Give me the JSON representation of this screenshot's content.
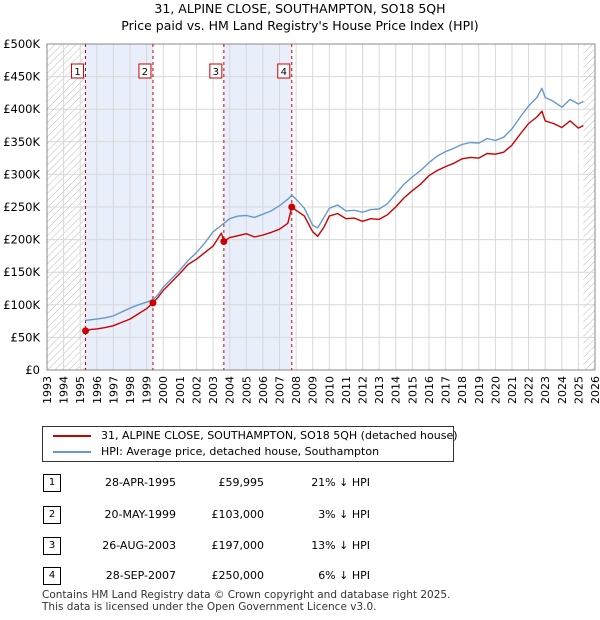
{
  "title": {
    "line1": "31, ALPINE CLOSE, SOUTHAMPTON, SO18 5QH",
    "line2": "Price paid vs. HM Land Registry's House Price Index (HPI)"
  },
  "colors": {
    "property_line": "#cc0000",
    "hpi_line": "#6699cc",
    "shade": "#e8eefa",
    "grid": "#d8d8d8",
    "marker_border": "#cc0000"
  },
  "chart_data": {
    "type": "line",
    "title": "31, ALPINE CLOSE, SOUTHAMPTON, SO18 5QH — Price paid vs. HM Land Registry's House Price Index (HPI)",
    "xlabel": "",
    "ylabel": "",
    "xlim": [
      1993,
      2026
    ],
    "ylim": [
      0,
      500000
    ],
    "grid": true,
    "y_ticks": [
      0,
      50000,
      100000,
      150000,
      200000,
      250000,
      300000,
      350000,
      400000,
      450000,
      500000
    ],
    "y_tick_labels": [
      "£0",
      "£50K",
      "£100K",
      "£150K",
      "£200K",
      "£250K",
      "£300K",
      "£350K",
      "£400K",
      "£450K",
      "£500K"
    ],
    "x_ticks": [
      1993,
      1994,
      1995,
      1996,
      1997,
      1998,
      1999,
      2000,
      2001,
      2002,
      2003,
      2004,
      2005,
      2006,
      2007,
      2008,
      2009,
      2010,
      2011,
      2012,
      2013,
      2014,
      2015,
      2016,
      2017,
      2018,
      2019,
      2020,
      2021,
      2022,
      2023,
      2024,
      2025,
      2026
    ],
    "x_tick_labels": [
      "1993",
      "1994",
      "1995",
      "1996",
      "1997",
      "1998",
      "1999",
      "2000",
      "2001",
      "2002",
      "2003",
      "2004",
      "2005",
      "2006",
      "2007",
      "2008",
      "2009",
      "2010",
      "2011",
      "2012",
      "2013",
      "2014",
      "2015",
      "2016",
      "2017",
      "2018",
      "2019",
      "2020",
      "2021",
      "2022",
      "2023",
      "2024",
      "2025",
      "2026"
    ],
    "hatched_periods": [
      [
        1993.0,
        1995.32
      ],
      [
        2025.3,
        2026.0
      ]
    ],
    "shaded_periods": [
      [
        1995.32,
        1999.38
      ],
      [
        2003.65,
        2007.74
      ]
    ],
    "sale_markers": [
      {
        "label": "1",
        "x": 1995.32,
        "y": 59995
      },
      {
        "label": "2",
        "x": 1999.38,
        "y": 103000
      },
      {
        "label": "3",
        "x": 2003.65,
        "y": 197000
      },
      {
        "label": "4",
        "x": 2007.74,
        "y": 250000
      }
    ],
    "series": [
      {
        "name": "31, ALPINE CLOSE, SOUTHAMPTON, SO18 5QH (detached house)",
        "x": [
          1995.32,
          1995.6,
          1996.0,
          1996.5,
          1997.0,
          1997.5,
          1998.0,
          1998.5,
          1999.0,
          1999.38,
          1999.7,
          2000.0,
          2000.5,
          2001.0,
          2001.5,
          2002.0,
          2002.5,
          2003.0,
          2003.5,
          2003.65,
          2004.0,
          2004.5,
          2005.0,
          2005.5,
          2006.0,
          2006.5,
          2007.0,
          2007.5,
          2007.74,
          2008.0,
          2008.5,
          2009.0,
          2009.3,
          2009.7,
          2010.0,
          2010.5,
          2011.0,
          2011.5,
          2012.0,
          2012.5,
          2013.0,
          2013.5,
          2014.0,
          2014.5,
          2015.0,
          2015.5,
          2016.0,
          2016.5,
          2017.0,
          2017.5,
          2018.0,
          2018.5,
          2019.0,
          2019.5,
          2020.0,
          2020.5,
          2021.0,
          2021.5,
          2022.0,
          2022.5,
          2022.8,
          2023.0,
          2023.5,
          2024.0,
          2024.5,
          2025.0,
          2025.3
        ],
        "y": [
          59995,
          62000,
          63000,
          65000,
          68000,
          73000,
          78000,
          86000,
          94000,
          103000,
          112000,
          122000,
          135000,
          148000,
          162000,
          170000,
          180000,
          190000,
          210000,
          197000,
          203000,
          206000,
          209000,
          204000,
          207000,
          211000,
          216000,
          225000,
          250000,
          245000,
          236000,
          212000,
          205000,
          220000,
          236000,
          240000,
          232000,
          233000,
          228000,
          232000,
          231000,
          238000,
          250000,
          264000,
          275000,
          285000,
          298000,
          306000,
          312000,
          317000,
          324000,
          326000,
          325000,
          332000,
          331000,
          334000,
          345000,
          362000,
          378000,
          388000,
          397000,
          382000,
          378000,
          372000,
          382000,
          371000,
          375000
        ]
      },
      {
        "name": "HPI: Average price, detached house, Southampton",
        "x": [
          1995.32,
          1995.6,
          1996.0,
          1996.5,
          1997.0,
          1997.5,
          1998.0,
          1998.5,
          1999.0,
          1999.38,
          1999.7,
          2000.0,
          2000.5,
          2001.0,
          2001.5,
          2002.0,
          2002.5,
          2003.0,
          2003.5,
          2003.65,
          2004.0,
          2004.5,
          2005.0,
          2005.5,
          2006.0,
          2006.5,
          2007.0,
          2007.5,
          2007.74,
          2008.0,
          2008.5,
          2009.0,
          2009.3,
          2009.7,
          2010.0,
          2010.5,
          2011.0,
          2011.5,
          2012.0,
          2012.5,
          2013.0,
          2013.5,
          2014.0,
          2014.5,
          2015.0,
          2015.5,
          2016.0,
          2016.5,
          2017.0,
          2017.5,
          2018.0,
          2018.5,
          2019.0,
          2019.5,
          2020.0,
          2020.5,
          2021.0,
          2021.5,
          2022.0,
          2022.5,
          2022.8,
          2023.0,
          2023.5,
          2024.0,
          2024.5,
          2025.0,
          2025.3
        ],
        "y": [
          76000,
          77000,
          78000,
          80000,
          83000,
          89000,
          95000,
          100000,
          104000,
          108000,
          116000,
          127000,
          140000,
          153000,
          168000,
          180000,
          195000,
          212000,
          222000,
          225000,
          232000,
          236000,
          237000,
          234000,
          239000,
          244000,
          252000,
          262000,
          268000,
          262000,
          248000,
          222000,
          218000,
          235000,
          248000,
          253000,
          244000,
          245000,
          242000,
          246000,
          247000,
          255000,
          270000,
          285000,
          296000,
          306000,
          318000,
          328000,
          335000,
          340000,
          346000,
          349000,
          348000,
          355000,
          352000,
          357000,
          370000,
          388000,
          405000,
          418000,
          432000,
          418000,
          412000,
          403000,
          415000,
          408000,
          412000
        ]
      }
    ]
  },
  "legend": {
    "property_label": "31, ALPINE CLOSE, SOUTHAMPTON, SO18 5QH (detached house)",
    "hpi_label": "HPI: Average price, detached house, Southampton"
  },
  "transactions": [
    {
      "num": "1",
      "date": "28-APR-1995",
      "price": "£59,995",
      "hpi": "21% ↓ HPI"
    },
    {
      "num": "2",
      "date": "20-MAY-1999",
      "price": "£103,000",
      "hpi": "3% ↓ HPI"
    },
    {
      "num": "3",
      "date": "26-AUG-2003",
      "price": "£197,000",
      "hpi": "13% ↓ HPI"
    },
    {
      "num": "4",
      "date": "28-SEP-2007",
      "price": "£250,000",
      "hpi": "6% ↓ HPI"
    }
  ],
  "footer": {
    "line1": "Contains HM Land Registry data © Crown copyright and database right 2025.",
    "line2": "This data is licensed under the Open Government Licence v3.0."
  }
}
